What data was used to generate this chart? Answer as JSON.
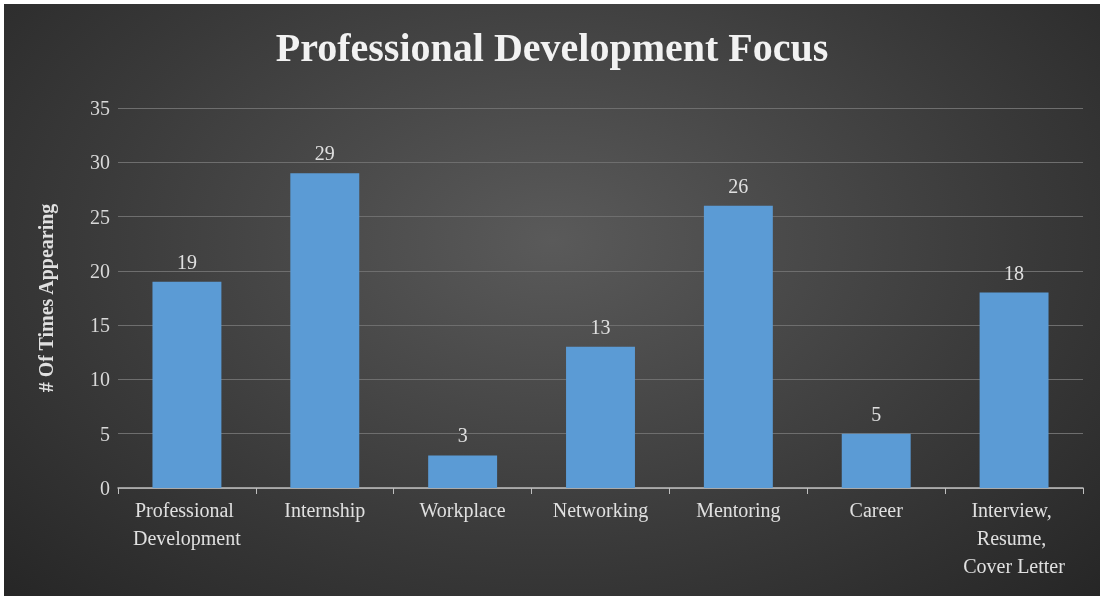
{
  "chart_data": {
    "type": "bar",
    "title": "Professional Development Focus",
    "ylabel": "# Of Times Appearing",
    "categories": [
      "Professional Development",
      "Internship",
      "Workplace",
      "Networking",
      "Mentoring",
      "Career",
      "Interview, Resume, Cover Letter"
    ],
    "values": [
      19,
      29,
      3,
      13,
      26,
      5,
      18
    ],
    "color": "#5b9bd5",
    "ylim": [
      0,
      35
    ],
    "yticks": [
      0,
      5,
      10,
      15,
      20,
      25,
      30,
      35
    ],
    "grid": "y",
    "data_labels": true
  }
}
